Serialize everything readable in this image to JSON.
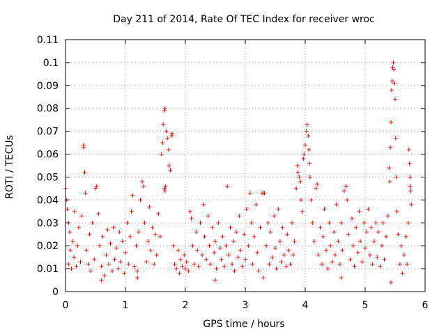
{
  "chart_data": {
    "type": "scatter",
    "title": "Day 211 of 2014, Rate Of TEC Index for receiver wroc",
    "xlabel": "GPS time / hours",
    "ylabel": "ROTI / TECUs",
    "xlim": [
      0,
      6
    ],
    "ylim": [
      0,
      0.11
    ],
    "xticks": [
      0,
      1,
      2,
      3,
      4,
      5,
      6
    ],
    "xtick_labels": [
      "0",
      "1",
      "2",
      "3",
      "4",
      "5",
      "6"
    ],
    "yticks": [
      0,
      0.01,
      0.02,
      0.03,
      0.04,
      0.05,
      0.06,
      0.07,
      0.08,
      0.09,
      0.1,
      0.11
    ],
    "ytick_labels": [
      "0",
      "0.01",
      "0.02",
      "0.03",
      "0.04",
      "0.05",
      "0.06",
      "0.07",
      "0.08",
      "0.09",
      "0.1",
      "0.11"
    ],
    "grid": true,
    "marker": "+",
    "marker_color": "#ff0000",
    "series": [
      {
        "name": "ROTI",
        "points": [
          [
            0.0,
            0.045
          ],
          [
            0.02,
            0.04
          ],
          [
            0.03,
            0.036
          ],
          [
            0.05,
            0.03
          ],
          [
            0.05,
            0.012
          ],
          [
            0.07,
            0.026
          ],
          [
            0.08,
            0.018
          ],
          [
            0.1,
            0.01
          ],
          [
            0.12,
            0.022
          ],
          [
            0.14,
            0.015
          ],
          [
            0.15,
            0.035
          ],
          [
            0.18,
            0.011
          ],
          [
            0.2,
            0.02
          ],
          [
            0.22,
            0.028
          ],
          [
            0.25,
            0.013
          ],
          [
            0.27,
            0.033
          ],
          [
            0.3,
            0.064
          ],
          [
            0.3,
            0.063
          ],
          [
            0.32,
            0.052
          ],
          [
            0.33,
            0.043
          ],
          [
            0.35,
            0.018
          ],
          [
            0.38,
            0.012
          ],
          [
            0.4,
            0.025
          ],
          [
            0.42,
            0.009
          ],
          [
            0.45,
            0.03
          ],
          [
            0.48,
            0.014
          ],
          [
            0.5,
            0.045
          ],
          [
            0.52,
            0.046
          ],
          [
            0.55,
            0.034
          ],
          [
            0.57,
            0.02
          ],
          [
            0.6,
            0.011
          ],
          [
            0.62,
            0.024
          ],
          [
            0.65,
            0.007
          ],
          [
            0.68,
            0.016
          ],
          [
            0.7,
            0.027
          ],
          [
            0.72,
            0.012
          ],
          [
            0.75,
            0.021
          ],
          [
            0.78,
            0.009
          ],
          [
            0.8,
            0.028
          ],
          [
            0.82,
            0.014
          ],
          [
            0.85,
            0.019
          ],
          [
            0.88,
            0.01
          ],
          [
            0.9,
            0.026
          ],
          [
            0.92,
            0.013
          ],
          [
            0.95,
            0.022
          ],
          [
            0.98,
            0.008
          ],
          [
            1.0,
            0.017
          ],
          [
            1.03,
            0.03
          ],
          [
            1.05,
            0.012
          ],
          [
            1.08,
            0.024
          ],
          [
            1.1,
            0.035
          ],
          [
            1.12,
            0.042
          ],
          [
            1.15,
            0.011
          ],
          [
            1.18,
            0.02
          ],
          [
            1.2,
            0.009
          ],
          [
            1.22,
            0.026
          ],
          [
            1.25,
            0.04
          ],
          [
            1.28,
            0.048
          ],
          [
            1.3,
            0.046
          ],
          [
            1.32,
            0.03
          ],
          [
            1.35,
            0.013
          ],
          [
            1.38,
            0.022
          ],
          [
            1.4,
            0.037
          ],
          [
            1.42,
            0.018
          ],
          [
            1.45,
            0.028
          ],
          [
            1.48,
            0.012
          ],
          [
            1.5,
            0.025
          ],
          [
            1.52,
            0.016
          ],
          [
            1.55,
            0.034
          ],
          [
            1.58,
            0.024
          ],
          [
            1.6,
            0.06
          ],
          [
            1.62,
            0.065
          ],
          [
            1.63,
            0.073
          ],
          [
            1.65,
            0.079
          ],
          [
            1.66,
            0.08
          ],
          [
            1.68,
            0.07
          ],
          [
            1.7,
            0.067
          ],
          [
            1.72,
            0.062
          ],
          [
            1.73,
            0.055
          ],
          [
            1.75,
            0.053
          ],
          [
            1.65,
            0.045
          ],
          [
            1.66,
            0.044
          ],
          [
            1.67,
            0.046
          ],
          [
            1.78,
            0.069
          ],
          [
            1.77,
            0.068
          ],
          [
            1.8,
            0.02
          ],
          [
            1.82,
            0.012
          ],
          [
            1.85,
            0.01
          ],
          [
            1.88,
            0.018
          ],
          [
            1.9,
            0.008
          ],
          [
            1.92,
            0.014
          ],
          [
            1.95,
            0.011
          ],
          [
            1.98,
            0.016
          ],
          [
            2.0,
            0.01
          ],
          [
            2.02,
            0.013
          ],
          [
            2.05,
            0.009
          ],
          [
            2.08,
            0.035
          ],
          [
            2.1,
            0.032
          ],
          [
            2.12,
            0.02
          ],
          [
            2.15,
            0.012
          ],
          [
            2.18,
            0.026
          ],
          [
            2.2,
            0.018
          ],
          [
            2.22,
            0.011
          ],
          [
            2.25,
            0.03
          ],
          [
            2.28,
            0.016
          ],
          [
            2.3,
            0.038
          ],
          [
            2.32,
            0.024
          ],
          [
            2.35,
            0.014
          ],
          [
            2.38,
            0.033
          ],
          [
            2.4,
            0.02
          ],
          [
            2.42,
            0.012
          ],
          [
            2.45,
            0.028
          ],
          [
            2.48,
            0.017
          ],
          [
            2.5,
            0.022
          ],
          [
            2.52,
            0.01
          ],
          [
            2.55,
            0.03
          ],
          [
            2.58,
            0.019
          ],
          [
            2.6,
            0.014
          ],
          [
            2.62,
            0.024
          ],
          [
            2.65,
            0.011
          ],
          [
            2.68,
            0.02
          ],
          [
            2.7,
            0.046
          ],
          [
            2.72,
            0.016
          ],
          [
            2.75,
            0.028
          ],
          [
            2.78,
            0.012
          ],
          [
            2.8,
            0.022
          ],
          [
            2.82,
            0.009
          ],
          [
            2.85,
            0.026
          ],
          [
            2.88,
            0.015
          ],
          [
            2.9,
            0.033
          ],
          [
            2.92,
            0.018
          ],
          [
            2.95,
            0.011
          ],
          [
            2.98,
            0.025
          ],
          [
            3.0,
            0.014
          ],
          [
            3.02,
            0.036
          ],
          [
            3.05,
            0.02
          ],
          [
            3.08,
            0.043
          ],
          [
            3.1,
            0.03
          ],
          [
            3.12,
            0.012
          ],
          [
            3.15,
            0.024
          ],
          [
            3.18,
            0.038
          ],
          [
            3.2,
            0.017
          ],
          [
            3.22,
            0.009
          ],
          [
            3.25,
            0.028
          ],
          [
            3.28,
            0.043
          ],
          [
            3.3,
            0.043
          ],
          [
            3.32,
            0.043
          ],
          [
            3.35,
            0.02
          ],
          [
            3.38,
            0.03
          ],
          [
            3.4,
            0.012
          ],
          [
            3.42,
            0.026
          ],
          [
            3.45,
            0.015
          ],
          [
            3.48,
            0.033
          ],
          [
            3.5,
            0.019
          ],
          [
            3.52,
            0.01
          ],
          [
            3.55,
            0.036
          ],
          [
            3.58,
            0.022
          ],
          [
            3.6,
            0.013
          ],
          [
            3.62,
            0.028
          ],
          [
            3.65,
            0.016
          ],
          [
            3.68,
            0.011
          ],
          [
            3.7,
            0.025
          ],
          [
            3.72,
            0.018
          ],
          [
            3.75,
            0.012
          ],
          [
            3.78,
            0.03
          ],
          [
            3.8,
            0.016
          ],
          [
            3.82,
            0.022
          ],
          [
            3.85,
            0.045
          ],
          [
            3.87,
            0.055
          ],
          [
            3.88,
            0.052
          ],
          [
            3.9,
            0.05
          ],
          [
            3.92,
            0.048
          ],
          [
            3.93,
            0.04
          ],
          [
            3.95,
            0.035
          ],
          [
            3.97,
            0.058
          ],
          [
            3.98,
            0.06
          ],
          [
            4.0,
            0.064
          ],
          [
            4.02,
            0.07
          ],
          [
            4.03,
            0.073
          ],
          [
            4.05,
            0.068
          ],
          [
            4.06,
            0.062
          ],
          [
            4.07,
            0.056
          ],
          [
            4.08,
            0.05
          ],
          [
            4.1,
            0.04
          ],
          [
            4.12,
            0.03
          ],
          [
            4.15,
            0.022
          ],
          [
            4.18,
            0.045
          ],
          [
            4.2,
            0.047
          ],
          [
            4.22,
            0.016
          ],
          [
            4.25,
            0.028
          ],
          [
            4.28,
            0.012
          ],
          [
            4.3,
            0.024
          ],
          [
            4.32,
            0.036
          ],
          [
            4.35,
            0.018
          ],
          [
            4.38,
            0.01
          ],
          [
            4.4,
            0.03
          ],
          [
            4.42,
            0.02
          ],
          [
            4.45,
            0.013
          ],
          [
            4.48,
            0.026
          ],
          [
            4.5,
            0.016
          ],
          [
            4.52,
            0.038
          ],
          [
            4.55,
            0.022
          ],
          [
            4.58,
            0.012
          ],
          [
            4.6,
            0.03
          ],
          [
            4.62,
            0.018
          ],
          [
            4.65,
            0.044
          ],
          [
            4.68,
            0.046
          ],
          [
            4.7,
            0.04
          ],
          [
            4.72,
            0.025
          ],
          [
            4.75,
            0.014
          ],
          [
            4.78,
            0.032
          ],
          [
            4.8,
            0.02
          ],
          [
            4.82,
            0.011
          ],
          [
            4.85,
            0.028
          ],
          [
            4.88,
            0.017
          ],
          [
            4.9,
            0.035
          ],
          [
            4.92,
            0.022
          ],
          [
            4.95,
            0.013
          ],
          [
            4.98,
            0.03
          ],
          [
            5.0,
            0.019
          ],
          [
            5.02,
            0.026
          ],
          [
            5.05,
            0.036
          ],
          [
            5.08,
            0.016
          ],
          [
            5.1,
            0.028
          ],
          [
            5.12,
            0.012
          ],
          [
            5.15,
            0.022
          ],
          [
            5.18,
            0.03
          ],
          [
            5.2,
            0.015
          ],
          [
            5.22,
            0.026
          ],
          [
            5.25,
            0.011
          ],
          [
            5.28,
            0.02
          ],
          [
            5.3,
            0.03
          ],
          [
            5.32,
            0.014
          ],
          [
            5.35,
            0.024
          ],
          [
            5.38,
            0.033
          ],
          [
            5.4,
            0.054
          ],
          [
            5.41,
            0.048
          ],
          [
            5.42,
            0.063
          ],
          [
            5.43,
            0.074
          ],
          [
            5.44,
            0.088
          ],
          [
            5.45,
            0.092
          ],
          [
            5.46,
            0.098
          ],
          [
            5.47,
            0.1
          ],
          [
            5.48,
            0.097
          ],
          [
            5.49,
            0.091
          ],
          [
            5.5,
            0.084
          ],
          [
            5.51,
            0.067
          ],
          [
            5.52,
            0.05
          ],
          [
            5.53,
            0.035
          ],
          [
            5.55,
            0.025
          ],
          [
            5.58,
            0.012
          ],
          [
            5.6,
            0.02
          ],
          [
            5.62,
            0.008
          ],
          [
            5.65,
            0.016
          ],
          [
            5.68,
            0.024
          ],
          [
            5.7,
            0.012
          ],
          [
            5.72,
            0.03
          ],
          [
            5.73,
            0.062
          ],
          [
            5.74,
            0.056
          ],
          [
            5.75,
            0.05
          ],
          [
            5.75,
            0.046
          ],
          [
            5.76,
            0.044
          ],
          [
            5.77,
            0.038
          ],
          [
            5.43,
            0.004
          ],
          [
            0.6,
            0.005
          ],
          [
            1.2,
            0.006
          ],
          [
            2.5,
            0.005
          ],
          [
            3.3,
            0.006
          ],
          [
            4.6,
            0.006
          ]
        ]
      }
    ]
  }
}
